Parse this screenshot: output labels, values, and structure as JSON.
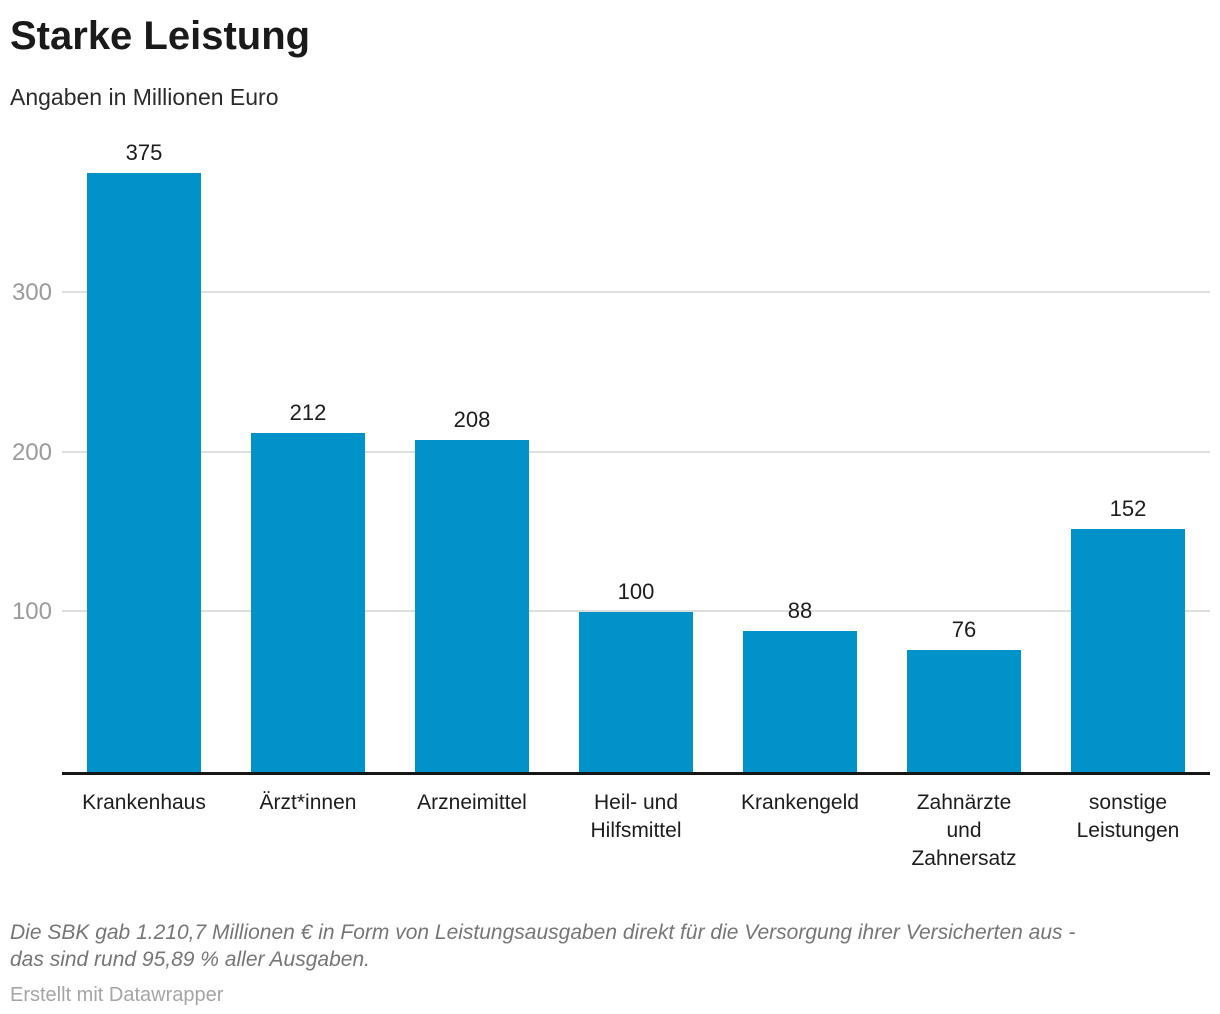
{
  "header": {
    "title": "Starke Leistung",
    "subtitle": "Angaben in Millionen Euro"
  },
  "chart_data": {
    "type": "bar",
    "title": "Starke Leistung",
    "subtitle": "Angaben in Millionen Euro",
    "categories": [
      "Krankenhaus",
      "Ärzt*innen",
      "Arzneimittel",
      "Heil- und\nHilfsmittel",
      "Krankengeld",
      "Zahnärzte\nund\nZahnersatz",
      "sonstige\nLeistungen"
    ],
    "values": [
      375,
      212,
      208,
      100,
      88,
      76,
      152
    ],
    "value_labels": [
      "375",
      "212",
      "208",
      "100",
      "88",
      "76",
      "152"
    ],
    "xlabel": "",
    "ylabel": "",
    "yticks": [
      100,
      200,
      300
    ],
    "ylim": [
      0,
      401
    ],
    "grid": true,
    "legend": "none",
    "bar_color": "#0092c8",
    "grid_color": "#dedede",
    "axis_color": "#161616",
    "tick_label_color": "#9b9b9b"
  },
  "footer": {
    "note": "Die SBK gab 1.210,7 Millionen € in Form von Leistungsausgaben direkt für die Versorgung ihrer Versicherten aus -\ndas sind rund 95,89 % aller Ausgaben.",
    "credit": "Erstellt mit Datawrapper"
  }
}
